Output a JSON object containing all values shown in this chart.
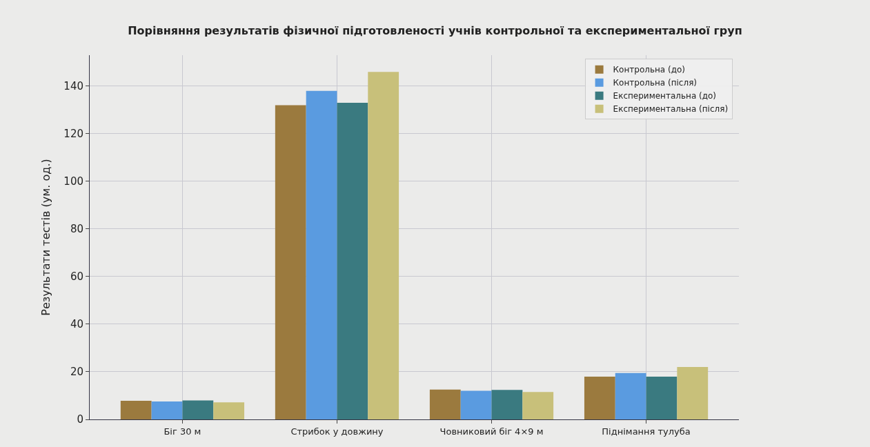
{
  "chart_data": {
    "type": "bar",
    "title": "Порівняння результатів фізичної підготовленості учнів контрольної та експериментальної груп",
    "ylabel": "Результати тестів (ум. од.)",
    "categories": [
      "Біг 30 м",
      "Стрибок у довжину",
      "Човниковий біг 4×9 м",
      "Піднімання тулуба"
    ],
    "series": [
      {
        "name": "Контрольна (до)",
        "color": "#9b7a3e",
        "values": [
          7.8,
          132,
          12.5,
          18
        ]
      },
      {
        "name": "Контрольна (після)",
        "color": "#5a9be0",
        "values": [
          7.5,
          138,
          12,
          19.5
        ]
      },
      {
        "name": "Експериментальна (до)",
        "color": "#3a7a80",
        "values": [
          8,
          133,
          12.4,
          18
        ]
      },
      {
        "name": "Експериментальна (після)",
        "color": "#c8c07a",
        "values": [
          7.2,
          146,
          11.5,
          22
        ]
      }
    ],
    "ylim": [
      0,
      153
    ],
    "yticks": [
      0,
      20,
      40,
      60,
      80,
      100,
      120,
      140
    ],
    "grid": true,
    "legend": "top right"
  }
}
